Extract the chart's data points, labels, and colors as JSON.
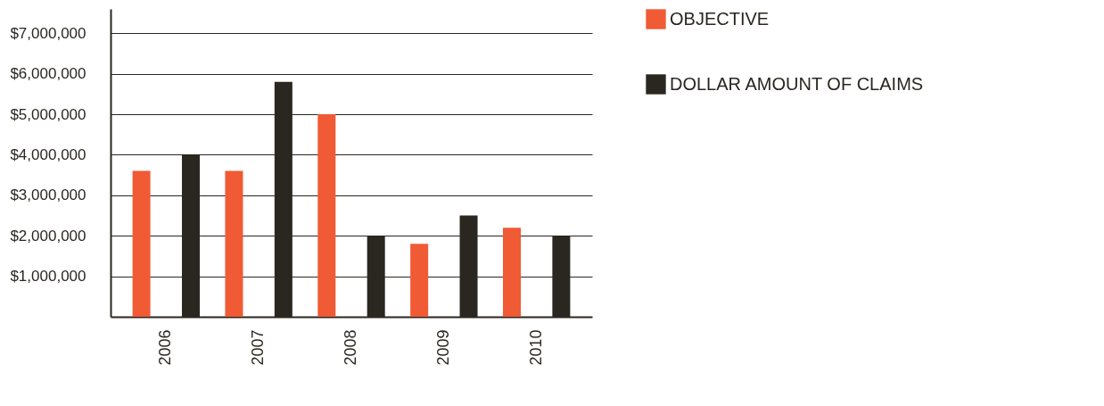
{
  "chart_data": {
    "type": "bar",
    "categories": [
      "2006",
      "2007",
      "2008",
      "2009",
      "2010"
    ],
    "series": [
      {
        "name": "OBJECTIVE",
        "color": "#f05a35",
        "values": [
          3600000,
          3600000,
          5000000,
          1800000,
          2200000
        ]
      },
      {
        "name": "DOLLAR AMOUNT OF CLAIMS",
        "color": "#2a2620",
        "values": [
          4000000,
          5800000,
          2000000,
          2500000,
          2000000
        ]
      }
    ],
    "ylim": [
      0,
      7600000
    ],
    "yticks": [
      {
        "value": 1000000,
        "label": "$1,000,000"
      },
      {
        "value": 2000000,
        "label": "$2,000,000"
      },
      {
        "value": 3000000,
        "label": "$3,000,000"
      },
      {
        "value": 4000000,
        "label": "$4,000,000"
      },
      {
        "value": 5000000,
        "label": "$5,000,000"
      },
      {
        "value": 6000000,
        "label": "$6,000,000"
      },
      {
        "value": 7000000,
        "label": "$7,000,000"
      }
    ],
    "grid": "y",
    "legend": "right"
  }
}
